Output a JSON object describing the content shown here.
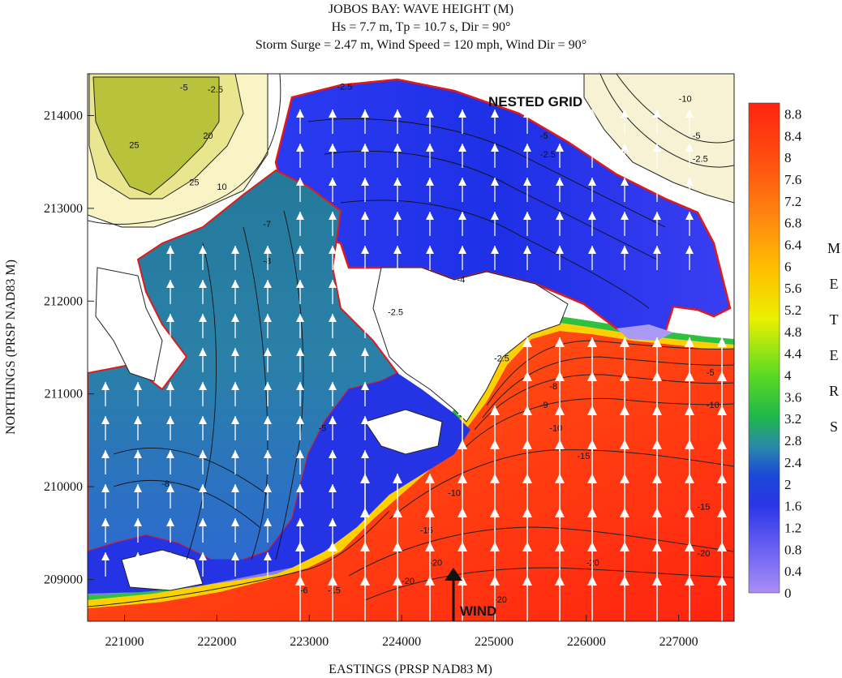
{
  "figure": {
    "title_lines": [
      "JOBOS  BAY: WAVE HEIGHT (M)",
      "Hs = 7.7 m, Tp = 10.7 s, Dir = 90°",
      "Storm Surge = 2.47 m, Wind Speed = 120 mph, Wind Dir = 90°"
    ],
    "nested_grid_label": "NESTED GRID",
    "wind_label": "WIND",
    "colorbar_unit_letters": [
      "M",
      "E",
      "T",
      "E",
      "R",
      "S"
    ]
  },
  "chart_data": {
    "type": "heatmap",
    "title": "JOBOS  BAY: WAVE HEIGHT (M)",
    "subtitle": "Hs = 7.7 m, Tp = 10.7 s, Dir = 90°; Storm Surge = 2.47 m, Wind Speed = 120 mph, Wind Dir = 90°",
    "xlabel": "EASTINGS (PRSP NAD83 M)",
    "ylabel": "NORTHINGS (PRSP NAD83 M)",
    "xlim": [
      220600,
      227600
    ],
    "ylim": [
      208550,
      214450
    ],
    "x_ticks": [
      221000,
      222000,
      223000,
      224000,
      225000,
      226000,
      227000
    ],
    "y_ticks": [
      209000,
      210000,
      211000,
      212000,
      213000,
      214000
    ],
    "colorbar": {
      "label": "METERS",
      "min": 0,
      "max": 9.0,
      "ticks": [
        0,
        0.4,
        0.8,
        1.2,
        1.6,
        2,
        2.4,
        2.8,
        3.2,
        3.6,
        4,
        4.4,
        4.8,
        5.2,
        5.6,
        6,
        6.4,
        6.8,
        7.2,
        7.6,
        8,
        8.4,
        8.8
      ],
      "tick_labels": [
        "0",
        "0.4",
        "0.8",
        "1.2",
        "1.6",
        "2",
        "2.4",
        "2.8",
        "3.2",
        "3.6",
        "4",
        "4.4",
        "4.8",
        "5.2",
        "5.6",
        "6",
        "6.4",
        "6.8",
        "7.2",
        "7.6",
        "8",
        "8.4",
        "8.8"
      ],
      "colors": [
        "#a98ef5",
        "#5a55f0",
        "#1e2de0",
        "#1a5fd0",
        "#2f9aa0",
        "#1fc040",
        "#7ee020",
        "#f0f000",
        "#ffb000",
        "#ff7a10",
        "#ff4a10",
        "#ff2410"
      ]
    },
    "wave_direction_deg": 90,
    "wind_direction_deg": 90,
    "contour_labels": [
      {
        "text": "-10",
        "x": 227000,
        "y": 214150
      },
      {
        "text": "-5",
        "x": 227150,
        "y": 213750
      },
      {
        "text": "-2.5",
        "x": 227150,
        "y": 213500
      },
      {
        "text": "-2.5",
        "x": 225500,
        "y": 213550
      },
      {
        "text": "-5",
        "x": 225500,
        "y": 213750
      },
      {
        "text": "-2.5",
        "x": 221900,
        "y": 214250
      },
      {
        "text": "-5",
        "x": 221600,
        "y": 214270
      },
      {
        "text": "-2.5",
        "x": 223300,
        "y": 214280
      },
      {
        "text": "25",
        "x": 221050,
        "y": 213650
      },
      {
        "text": "20",
        "x": 221850,
        "y": 213750
      },
      {
        "text": "25",
        "x": 221700,
        "y": 213250
      },
      {
        "text": "10",
        "x": 222000,
        "y": 213200
      },
      {
        "text": "-2.5",
        "x": 223850,
        "y": 211850
      },
      {
        "text": "-2.5",
        "x": 225000,
        "y": 211350
      },
      {
        "text": "-5",
        "x": 227300,
        "y": 211200
      },
      {
        "text": "-8",
        "x": 225600,
        "y": 211050
      },
      {
        "text": "-9",
        "x": 225500,
        "y": 210850
      },
      {
        "text": "-10",
        "x": 225600,
        "y": 210600
      },
      {
        "text": "-10",
        "x": 227300,
        "y": 210850
      },
      {
        "text": "-10",
        "x": 224500,
        "y": 209900
      },
      {
        "text": "-15",
        "x": 225900,
        "y": 210300
      },
      {
        "text": "-15",
        "x": 227200,
        "y": 209750
      },
      {
        "text": "-15",
        "x": 224200,
        "y": 209500
      },
      {
        "text": "-15",
        "x": 223200,
        "y": 208850
      },
      {
        "text": "-20",
        "x": 224300,
        "y": 209150
      },
      {
        "text": "-20",
        "x": 224000,
        "y": 208950
      },
      {
        "text": "-20",
        "x": 226000,
        "y": 209150
      },
      {
        "text": "-20",
        "x": 227200,
        "y": 209250
      },
      {
        "text": "-20",
        "x": 225000,
        "y": 208750
      },
      {
        "text": "-6",
        "x": 222900,
        "y": 208850
      },
      {
        "text": "-8",
        "x": 222500,
        "y": 212400
      },
      {
        "text": "-7",
        "x": 222500,
        "y": 212800
      },
      {
        "text": "-5",
        "x": 223100,
        "y": 210600
      },
      {
        "text": "-4",
        "x": 224600,
        "y": 212200
      },
      {
        "text": "-8",
        "x": 221400,
        "y": 210000
      }
    ]
  }
}
